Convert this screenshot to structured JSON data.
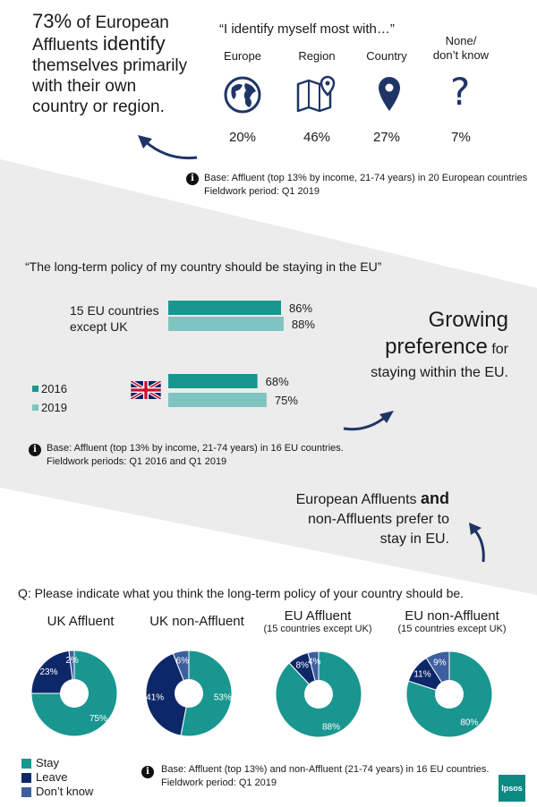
{
  "colors": {
    "stay": "#1a9690",
    "leave": "#0d2869",
    "dontknow": "#3d5fa0",
    "bar2016": "#1a9690",
    "bar2019": "#7fc4c0",
    "arrow": "#1f3566",
    "band": "#ececec",
    "ipsos": "#0b8a82"
  },
  "top": {
    "pct": "73%",
    "line1_rest": "of European",
    "word_affluents": "Affluents",
    "word_identify": "identify",
    "line3": "themselves primarily",
    "line4": "with their own",
    "line5": "country or region.",
    "quote": "“I identify myself most with…”",
    "categories": [
      {
        "label": "Europe",
        "value": "20%",
        "icon": "globe-icon"
      },
      {
        "label": "Region",
        "value": "46%",
        "icon": "map-icon"
      },
      {
        "label": "Country",
        "value": "27%",
        "icon": "location-pin-icon"
      },
      {
        "label_1": "None/",
        "label_2": "don’t know",
        "value": "7%",
        "icon": "question-mark-icon"
      }
    ],
    "note_1": "Base: Affluent (top 13% by income, 21-74 years) in 20 European countries",
    "note_2": "Fieldwork period: Q1 2019"
  },
  "middle": {
    "quote": "“The long-term policy of my country should be staying in the EU”",
    "group1_l1": "15 EU countries",
    "group1_l2": "except UK",
    "legend_2016": "2016",
    "legend_2019": "2019",
    "growing_1": "Growing",
    "growing_2a": "preference",
    "growing_2b": "for",
    "growing_3": "staying within the EU.",
    "note_1": "Base: Affluent (top 13% by income, 21-74 years) in 16 EU countries.",
    "note_2": "Fieldwork periods: Q1 2016 and Q1 2019",
    "bar_labels": [
      "86%",
      "88%",
      "68%",
      "75%"
    ]
  },
  "bottom_head": {
    "line1a": "European Affluents",
    "line1b": "and",
    "line2": "non-Affluents prefer to",
    "line3": "stay in EU."
  },
  "bottom": {
    "question": "Q: Please indicate what you think the long-term policy of your country should be.",
    "note_1": "Base: Affluent (top 13%) and non-Affluent (21-74 years) in 16 EU countries.",
    "note_2": "Fieldwork period: Q1 2019",
    "legend": [
      "Stay",
      "Leave",
      "Don’t know"
    ],
    "brand": "Ipsos"
  },
  "chart_data": [
    {
      "type": "bar",
      "title": "“The long-term policy of my country should be staying in the EU”",
      "categories": [
        "15 EU countries except UK",
        "UK"
      ],
      "series": [
        {
          "name": "2016",
          "values": [
            86,
            68
          ]
        },
        {
          "name": "2019",
          "values": [
            88,
            75
          ]
        }
      ],
      "ylim": [
        0,
        100
      ]
    },
    {
      "type": "pie",
      "charts": [
        {
          "title": "UK Affluent",
          "subtitle": "",
          "labels": [
            "Stay",
            "Leave",
            "Don’t know"
          ],
          "values": [
            75,
            23,
            2
          ],
          "value_labels": [
            "75%",
            "23%",
            "2%"
          ]
        },
        {
          "title": "UK non-Affluent",
          "subtitle": "",
          "labels": [
            "Stay",
            "Leave",
            "Don’t know"
          ],
          "values": [
            53,
            41,
            6
          ],
          "value_labels": [
            "53%",
            "41%",
            "6%"
          ]
        },
        {
          "title": "EU Affluent",
          "subtitle": "(15 countries except UK)",
          "labels": [
            "Stay",
            "Leave",
            "Don’t know"
          ],
          "values": [
            88,
            8,
            4
          ],
          "value_labels": [
            "88%",
            "8%",
            "4%"
          ]
        },
        {
          "title": "EU non-Affluent",
          "subtitle": "(15 countries except UK)",
          "labels": [
            "Stay",
            "Leave",
            "Don’t know"
          ],
          "values": [
            80,
            11,
            9
          ],
          "value_labels": [
            "80%",
            "11%",
            "9%"
          ]
        }
      ]
    }
  ]
}
